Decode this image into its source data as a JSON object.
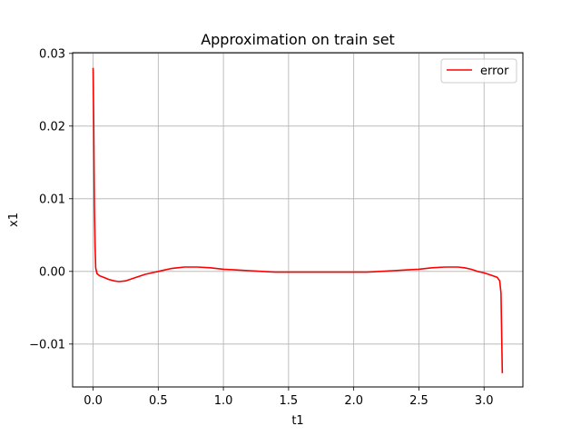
{
  "chart_data": {
    "type": "line",
    "title": "Approximation on train set",
    "xlabel": "t1",
    "ylabel": "x1",
    "xlim": [
      -0.157,
      3.298
    ],
    "ylim": [
      -0.0159,
      0.0301
    ],
    "grid": true,
    "legend_position": "top-right",
    "x_ticks": [
      0.0,
      0.5,
      1.0,
      1.5,
      2.0,
      2.5,
      3.0
    ],
    "x_tick_labels": [
      "0.0",
      "0.5",
      "1.0",
      "1.5",
      "2.0",
      "2.5",
      "3.0"
    ],
    "y_ticks": [
      -0.01,
      0.0,
      0.01,
      0.02,
      0.03
    ],
    "y_tick_labels": [
      "−0.01",
      "0.00",
      "0.01",
      "0.02",
      "0.03"
    ],
    "series": [
      {
        "name": "error",
        "color": "#ff0000",
        "x": [
          0.0,
          0.005,
          0.01,
          0.015,
          0.02,
          0.03,
          0.05,
          0.08,
          0.12,
          0.16,
          0.2,
          0.25,
          0.3,
          0.35,
          0.4,
          0.45,
          0.5,
          0.55,
          0.6,
          0.65,
          0.7,
          0.75,
          0.8,
          0.9,
          1.0,
          1.1,
          1.2,
          1.3,
          1.4,
          1.5,
          1.6,
          1.7,
          1.8,
          1.9,
          2.0,
          2.1,
          2.2,
          2.3,
          2.4,
          2.5,
          2.6,
          2.7,
          2.75,
          2.8,
          2.85,
          2.9,
          2.95,
          3.0,
          3.05,
          3.1,
          3.12,
          3.13,
          3.14
        ],
        "y": [
          0.028,
          0.02,
          0.009,
          0.0035,
          0.0005,
          -0.0003,
          -0.0006,
          -0.0008,
          -0.0011,
          -0.0013,
          -0.0014,
          -0.0013,
          -0.001,
          -0.0007,
          -0.0004,
          -0.0002,
          0.0,
          0.0002,
          0.0004,
          0.0005,
          0.0006,
          0.0006,
          0.0006,
          0.0005,
          0.0003,
          0.0002,
          0.0001,
          0.0,
          -0.0001,
          -0.0001,
          -0.0001,
          -0.0001,
          -0.0001,
          -0.0001,
          -0.0001,
          -0.0001,
          0.0,
          0.0001,
          0.0002,
          0.0003,
          0.0005,
          0.0006,
          0.0006,
          0.0006,
          0.0005,
          0.0003,
          0.0,
          -0.0002,
          -0.0005,
          -0.0008,
          -0.0013,
          -0.003,
          -0.014
        ]
      }
    ]
  }
}
